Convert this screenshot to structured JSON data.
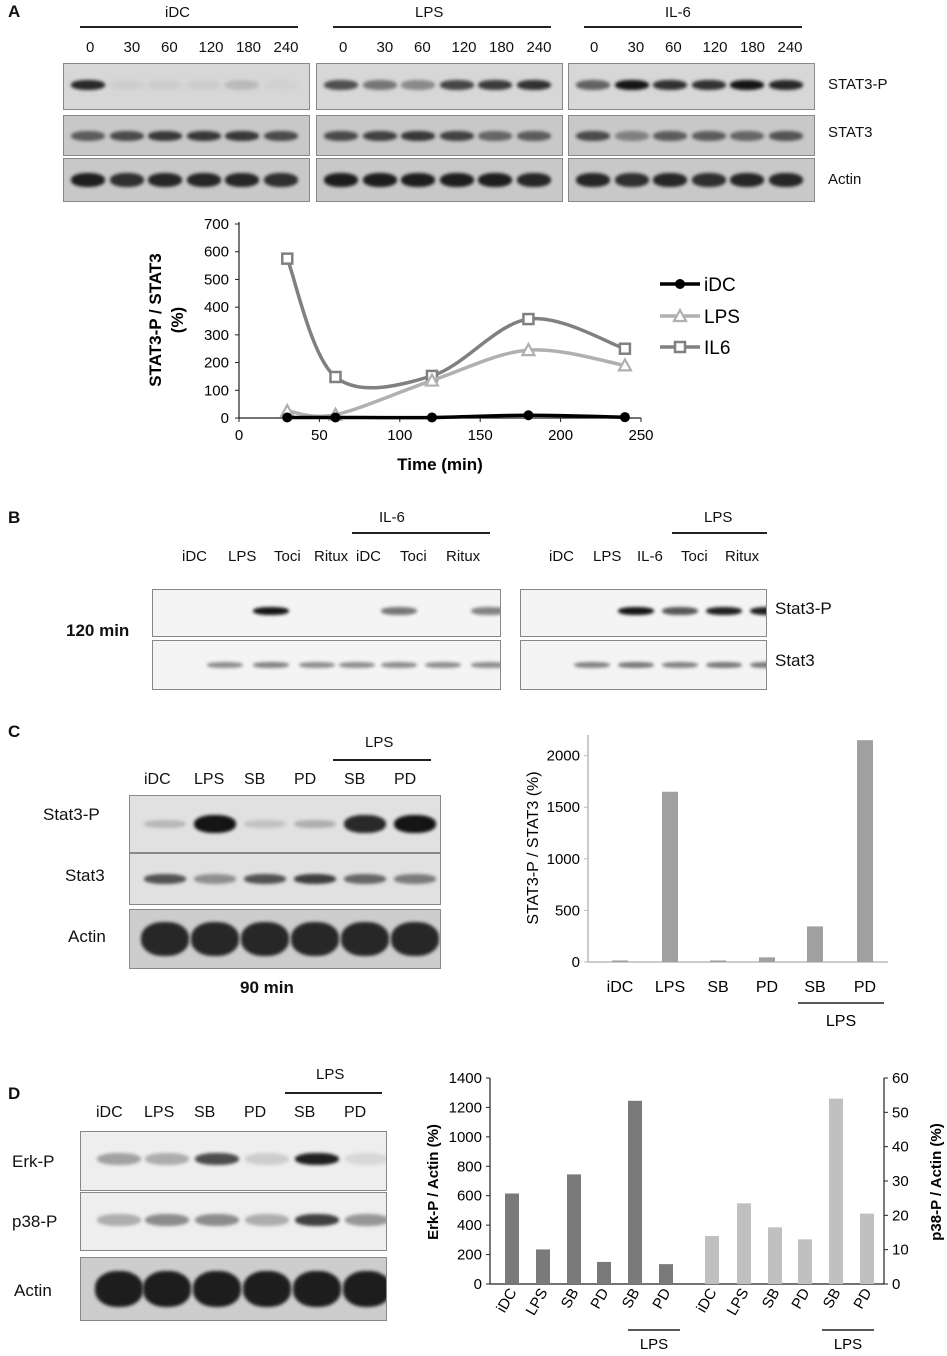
{
  "panelA": {
    "label": "A",
    "groups": [
      "iDC",
      "LPS",
      "IL-6"
    ],
    "times": [
      "0",
      "30",
      "60",
      "120",
      "180",
      "240"
    ],
    "rows": [
      "STAT3-P",
      "STAT3",
      "Actin"
    ],
    "blotIntensity": [
      [
        [
          0.9,
          0.05,
          0.05,
          0.05,
          0.15,
          0.03
        ],
        [
          0.7,
          0.5,
          0.4,
          0.75,
          0.8,
          0.85
        ],
        [
          0.6,
          1,
          0.85,
          0.85,
          1,
          0.9
        ]
      ],
      [
        [
          0.6,
          0.7,
          0.8,
          0.8,
          0.8,
          0.7
        ],
        [
          0.7,
          0.75,
          0.8,
          0.75,
          0.55,
          0.6
        ],
        [
          0.7,
          0.4,
          0.6,
          0.6,
          0.55,
          0.65
        ]
      ],
      [
        [
          0.95,
          0.85,
          0.9,
          0.9,
          0.9,
          0.85
        ],
        [
          0.95,
          0.95,
          0.95,
          0.95,
          0.95,
          0.9
        ],
        [
          0.9,
          0.85,
          0.9,
          0.85,
          0.9,
          0.9
        ]
      ]
    ]
  },
  "chart_data": [
    {
      "type": "line",
      "ylabel": "STAT3-P / STAT3 (%)",
      "xlabel": "Time (min)",
      "xlim": [
        0,
        250
      ],
      "ylim": [
        0,
        700
      ],
      "xticks": [
        "0",
        "50",
        "100",
        "150",
        "200",
        "250"
      ],
      "yticks": [
        "0",
        "100",
        "200",
        "300",
        "400",
        "500",
        "600",
        "700"
      ],
      "legend_position": "right",
      "series": [
        {
          "name": "iDC",
          "color": "#000000",
          "marker": "circle",
          "x": [
            30,
            60,
            120,
            180,
            240
          ],
          "y": [
            2,
            2,
            2,
            10,
            3
          ]
        },
        {
          "name": "LPS",
          "color": "#b0b0b0",
          "marker": "triangle",
          "x": [
            30,
            60,
            120,
            180,
            240
          ],
          "y": [
            25,
            12,
            135,
            245,
            190
          ]
        },
        {
          "name": "IL6",
          "color": "#808080",
          "marker": "square",
          "x": [
            30,
            60,
            120,
            180,
            240
          ],
          "y": [
            575,
            148,
            152,
            357,
            250
          ]
        }
      ]
    },
    {
      "type": "bar",
      "ylabel": "STAT3-P / STAT3 (%)",
      "categories": [
        "iDC",
        "LPS",
        "SB",
        "PD",
        "SB",
        "PD"
      ],
      "group_label": "LPS",
      "values": [
        15,
        1650,
        15,
        45,
        345,
        2150
      ],
      "ylim": [
        0,
        2200
      ],
      "yticks": [
        "0",
        "500",
        "1000",
        "1500",
        "2000"
      ],
      "color": "#a0a0a0"
    },
    {
      "type": "bar",
      "ylabel_left": "Erk-P / Actin (%)",
      "ylabel_right": "p38-P / Actin (%)",
      "categories_left": [
        "iDC",
        "LPS",
        "SB",
        "PD",
        "SB",
        "PD"
      ],
      "categories_right": [
        "iDC",
        "LPS",
        "SB",
        "PD",
        "SB",
        "PD"
      ],
      "group_label": "LPS",
      "series": [
        {
          "axis": "left",
          "color": "#7a7a7a",
          "values": [
            615,
            235,
            745,
            150,
            1245,
            135
          ]
        },
        {
          "axis": "right",
          "color": "#c0c0c0",
          "values": [
            14,
            23.5,
            16.5,
            13,
            54,
            20.5
          ]
        }
      ],
      "ylim_left": [
        0,
        1400
      ],
      "ylim_right": [
        0,
        60
      ],
      "yticks_left": [
        "0",
        "200",
        "400",
        "600",
        "800",
        "1000",
        "1200",
        "1400"
      ],
      "yticks_right": [
        "0",
        "10",
        "20",
        "30",
        "40",
        "50",
        "60"
      ]
    }
  ],
  "panelB": {
    "label": "B",
    "time": "120 min",
    "left_lanes": [
      "iDC",
      "LPS",
      "Toci",
      "Ritux",
      "iDC",
      "Toci",
      "Ritux"
    ],
    "left_group": "IL-6",
    "right_lanes": [
      "iDC",
      "LPS",
      "IL-6",
      "Toci",
      "Ritux"
    ],
    "right_group": "LPS",
    "rows": [
      "Stat3-P",
      "Stat3"
    ],
    "left_intensity": [
      [
        0,
        1,
        0,
        0,
        0.55,
        0,
        0.5
      ],
      [
        0.45,
        0.5,
        0.45,
        0.45,
        0.45,
        0.45,
        0.45
      ]
    ],
    "right_intensity": [
      [
        0,
        1,
        0.7,
        0.95,
        0.95
      ],
      [
        0.5,
        0.55,
        0.5,
        0.55,
        0.55
      ]
    ]
  },
  "panelC": {
    "label": "C",
    "time": "90 min",
    "lanes": [
      "iDC",
      "LPS",
      "SB",
      "PD",
      "SB",
      "PD"
    ],
    "group": "LPS",
    "rows": [
      "Stat3-P",
      "Stat3",
      "Actin"
    ],
    "intensity": [
      [
        0.2,
        1,
        0.15,
        0.25,
        0.9,
        1
      ],
      [
        0.7,
        0.4,
        0.7,
        0.8,
        0.6,
        0.5
      ],
      [
        0.9,
        0.9,
        0.9,
        0.9,
        0.9,
        0.9
      ]
    ]
  },
  "panelD": {
    "label": "D",
    "lanes": [
      "iDC",
      "LPS",
      "SB",
      "PD",
      "SB",
      "PD"
    ],
    "group": "LPS",
    "rows": [
      "Erk-P",
      "p38-P",
      "Actin"
    ],
    "intensity": [
      [
        0.35,
        0.3,
        0.75,
        0.15,
        0.95,
        0.1
      ],
      [
        0.3,
        0.45,
        0.45,
        0.3,
        0.8,
        0.4
      ],
      [
        0.95,
        0.95,
        0.95,
        0.95,
        0.95,
        0.95
      ]
    ]
  }
}
